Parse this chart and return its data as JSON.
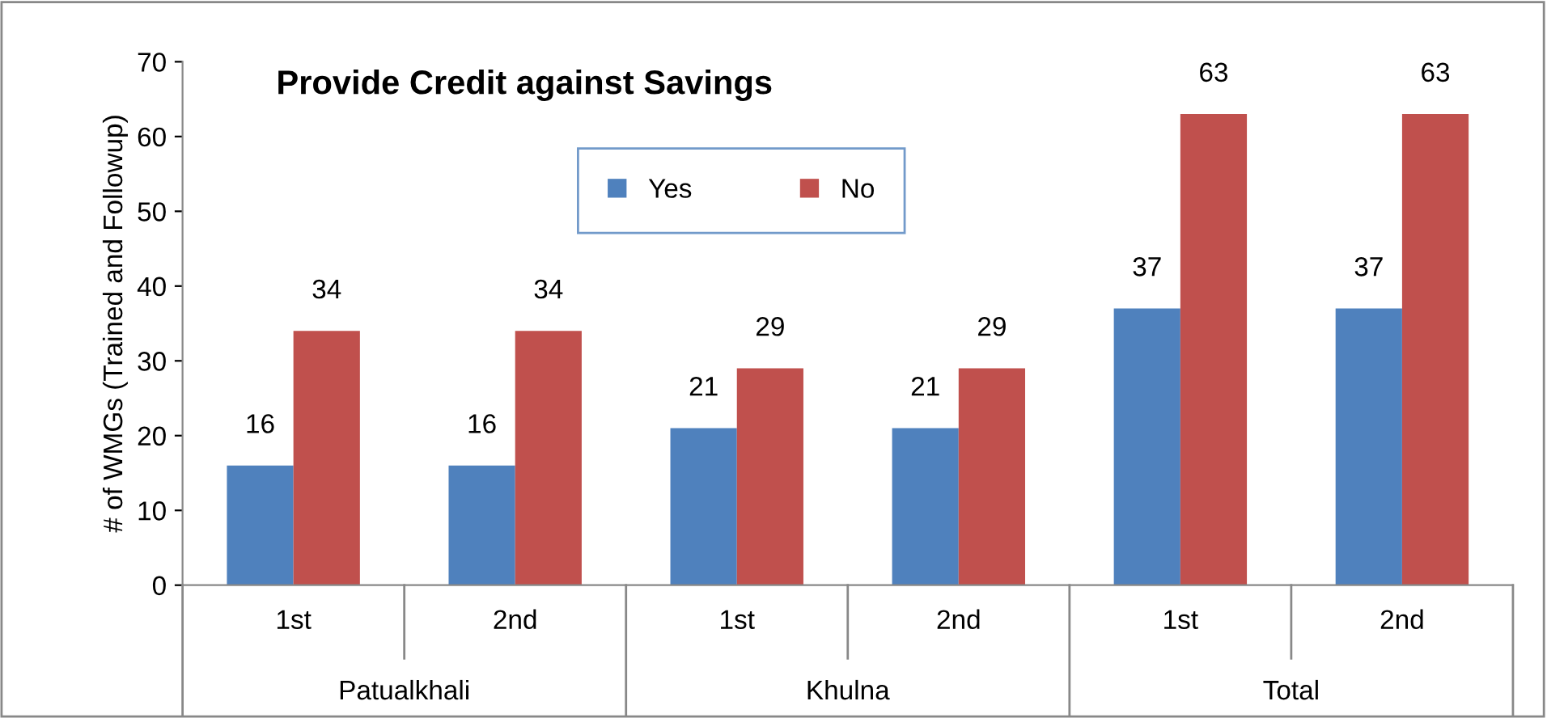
{
  "chart_data": {
    "type": "bar",
    "title": "Provide Credit against Savings",
    "ylabel": "# of WMGs (Trained and Followup)",
    "categories": [
      "1st",
      "2nd",
      "1st",
      "2nd",
      "1st",
      "2nd"
    ],
    "annotations": [
      "Patualkhali",
      "Khulna",
      "Total"
    ],
    "series": [
      {
        "name": "Yes",
        "color": "#4f81bd",
        "values": [
          16,
          16,
          21,
          21,
          37,
          37
        ]
      },
      {
        "name": "No",
        "color": "#c0504d",
        "values": [
          34,
          34,
          29,
          29,
          63,
          63
        ]
      }
    ],
    "ylim": [
      0,
      70
    ],
    "yticks": [
      0,
      10,
      20,
      30,
      40,
      50,
      60,
      70
    ],
    "grid": false,
    "legend": "top",
    "data_labels": true
  }
}
